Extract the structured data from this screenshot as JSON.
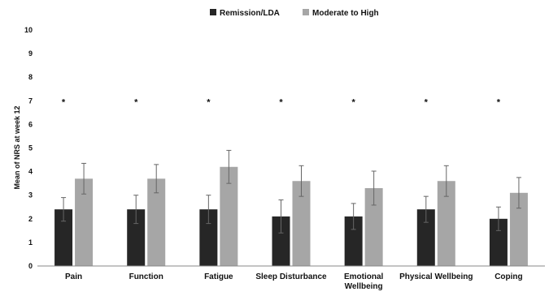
{
  "chart_data": {
    "type": "bar",
    "categories": [
      "Pain",
      "Function",
      "Fatigue",
      "Sleep Disturbance",
      "Emotional Wellbeing",
      "Physical Wellbeing",
      "Coping"
    ],
    "series": [
      {
        "name": "Remission/LDA",
        "color": "#262626",
        "values": [
          2.4,
          2.4,
          2.4,
          2.1,
          2.1,
          2.4,
          2.0
        ],
        "error": [
          0.5,
          0.6,
          0.6,
          0.7,
          0.55,
          0.55,
          0.5
        ]
      },
      {
        "name": "Moderate to High",
        "color": "#a6a6a6",
        "values": [
          3.7,
          3.7,
          4.2,
          3.6,
          3.3,
          3.6,
          3.1
        ],
        "error": [
          0.65,
          0.6,
          0.7,
          0.65,
          0.72,
          0.65,
          0.65
        ]
      }
    ],
    "significance": [
      "*",
      "*",
      "*",
      "*",
      "*",
      "*",
      "*"
    ],
    "significance_y": 7,
    "ylabel": "Mean of NRS at week 12",
    "xlabel": "",
    "ylim": [
      0,
      10
    ],
    "yticks": [
      0,
      1,
      2,
      3,
      4,
      5,
      6,
      7,
      8,
      9,
      10
    ],
    "grid": false,
    "legend_position": "top-center"
  }
}
